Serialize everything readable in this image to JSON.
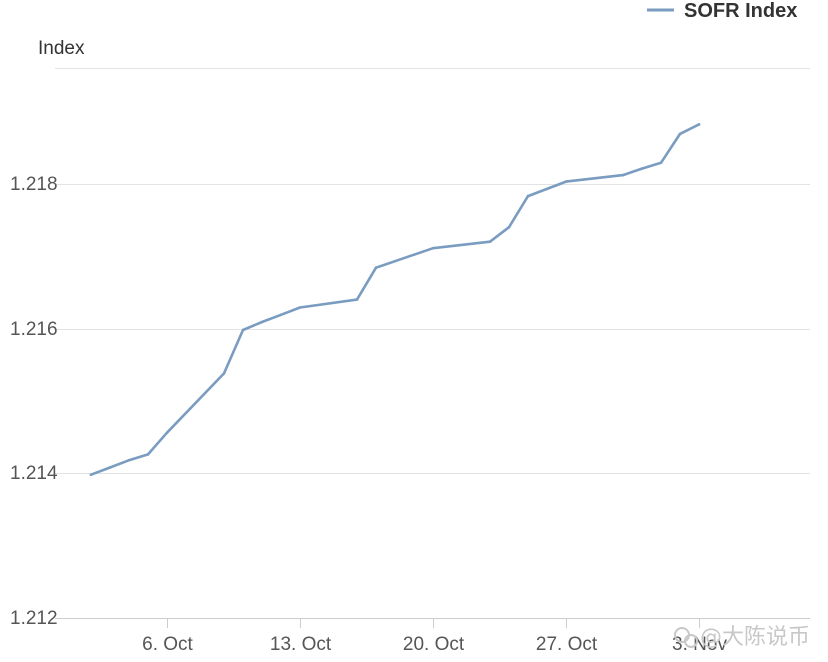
{
  "chart_data": {
    "type": "line",
    "ylabel": "Index",
    "ylim": [
      1.212,
      1.2196
    ],
    "yticks": [
      "1.212",
      "1.214",
      "1.216",
      "1.218"
    ],
    "xticks": [
      "6. Oct",
      "13. Oct",
      "20. Oct",
      "27. Oct",
      "3. Nov"
    ],
    "grid": true,
    "legend_position": "top-right",
    "series": [
      {
        "name": "SOFR Index",
        "color": "#7a9cc1",
        "x": [
          "2023-10-02",
          "2023-10-03",
          "2023-10-04",
          "2023-10-05",
          "2023-10-06",
          "2023-10-09",
          "2023-10-10",
          "2023-10-11",
          "2023-10-12",
          "2023-10-13",
          "2023-10-16",
          "2023-10-17",
          "2023-10-18",
          "2023-10-19",
          "2023-10-20",
          "2023-10-23",
          "2023-10-24",
          "2023-10-25",
          "2023-10-26",
          "2023-10-27",
          "2023-10-30",
          "2023-10-31",
          "2023-11-01",
          "2023-11-02",
          "2023-11-03"
        ],
        "values": [
          1.21398,
          1.21408,
          1.21418,
          1.21426,
          1.21456,
          1.21538,
          1.21598,
          1.21609,
          1.21619,
          1.21629,
          1.2164,
          1.21684,
          1.21693,
          1.21702,
          1.21711,
          1.2172,
          1.2174,
          1.21783,
          1.21793,
          1.21803,
          1.21812,
          1.21821,
          1.21829,
          1.21869,
          1.21882
        ]
      }
    ]
  },
  "watermark": {
    "label": "@大陈说币",
    "icon": "wechat-icon"
  }
}
